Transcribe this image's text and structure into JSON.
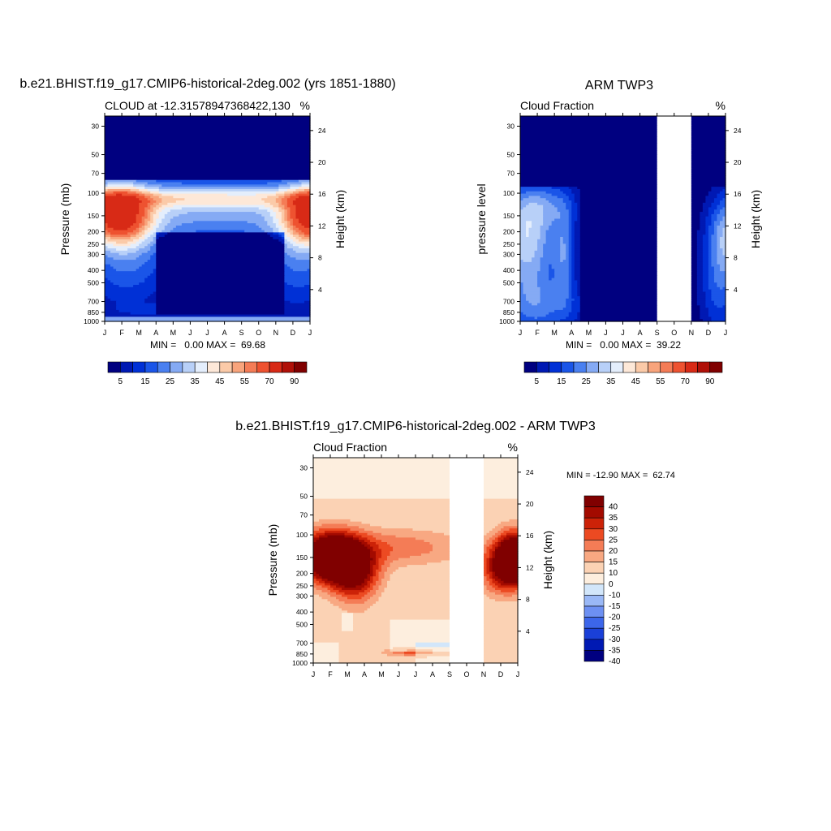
{
  "colors": {
    "seq": [
      "#000080",
      "#0019b3",
      "#0030d6",
      "#1a55e8",
      "#4a80f0",
      "#85aaf4",
      "#b8d0f8",
      "#e4eefc",
      "#fde8d8",
      "#fbcaa8",
      "#f8a47c",
      "#f47c56",
      "#ee5230",
      "#d82a16",
      "#b01008",
      "#800000"
    ],
    "div": [
      "#000080",
      "#0019b3",
      "#1a40d8",
      "#3c66ea",
      "#6d90f2",
      "#9ab8f6",
      "#d2e6fa",
      "#fdeede",
      "#fbd2b4",
      "#f8a882",
      "#f47c56",
      "#ec4a22",
      "#cc2208",
      "#a30a00",
      "#800000"
    ],
    "missing": "#ffffff"
  },
  "panels": [
    {
      "title": "b.e21.BHIST.f19_g17.CMIP6-historical-2deg.002 (yrs 1851-1880)",
      "left_string": "CLOUD at -12.31578947368422,130",
      "right_string": "%",
      "left_axis_label": "Pressure (mb)",
      "right_axis_label": "Height (km)",
      "stats": "MIN =   0.00 MAX =  69.68"
    },
    {
      "title": "ARM TWP3",
      "left_string": "Cloud Fraction",
      "right_string": "%",
      "left_axis_label": "pressure level",
      "right_axis_label": "Height (km)",
      "stats": "MIN =   0.00 MAX =  39.22"
    },
    {
      "title": "b.e21.BHIST.f19_g17.CMIP6-historical-2deg.002 - ARM TWP3",
      "left_string": "Cloud Fraction",
      "right_string": "%",
      "left_axis_label": "Pressure (mb)",
      "right_axis_label": "Height (km)",
      "stats": "MIN = -12.90 MAX =  62.74"
    }
  ],
  "chart_data": [
    {
      "type": "heatmap",
      "title": "b.e21.BHIST.f19_g17.CMIP6-historical-2deg.002 (yrs 1851-1880)",
      "xlabel": "",
      "ylabel": "Pressure (mb)",
      "y2label": "Height (km)",
      "x_ticks": [
        "J",
        "F",
        "M",
        "A",
        "M",
        "J",
        "J",
        "A",
        "S",
        "O",
        "N",
        "D",
        "J"
      ],
      "y_ticks": [
        30,
        50,
        70,
        100,
        150,
        200,
        250,
        300,
        400,
        500,
        700,
        850,
        1000
      ],
      "y2_ticks": [
        4,
        8,
        12,
        16,
        20,
        24
      ],
      "ylim": [
        1000,
        25
      ],
      "y_scale": "log",
      "colorbar_labels": [
        "5",
        "15",
        "25",
        "35",
        "45",
        "55",
        "70",
        "90"
      ],
      "min": 0.0,
      "max": 69.68
    },
    {
      "type": "heatmap",
      "title": "ARM TWP3",
      "xlabel": "",
      "ylabel": "pressure level",
      "y2label": "Height (km)",
      "x_ticks": [
        "J",
        "F",
        "M",
        "A",
        "M",
        "J",
        "J",
        "A",
        "S",
        "O",
        "N",
        "D",
        "J"
      ],
      "y_ticks": [
        30,
        50,
        70,
        100,
        150,
        200,
        250,
        300,
        400,
        500,
        700,
        850,
        1000
      ],
      "y2_ticks": [
        4,
        8,
        12,
        16,
        20,
        24
      ],
      "ylim": [
        1000,
        25
      ],
      "y_scale": "log",
      "missing_months": [
        "O"
      ],
      "colorbar_labels": [
        "5",
        "15",
        "25",
        "35",
        "45",
        "55",
        "70",
        "90"
      ],
      "min": 0.0,
      "max": 39.22
    },
    {
      "type": "heatmap",
      "title": "b.e21.BHIST.f19_g17.CMIP6-historical-2deg.002 - ARM TWP3",
      "xlabel": "",
      "ylabel": "Pressure (mb)",
      "y2label": "Height (km)",
      "x_ticks": [
        "J",
        "F",
        "M",
        "A",
        "M",
        "J",
        "J",
        "A",
        "S",
        "O",
        "N",
        "D",
        "J"
      ],
      "y_ticks": [
        30,
        50,
        70,
        100,
        150,
        200,
        250,
        300,
        400,
        500,
        700,
        850,
        1000
      ],
      "y2_ticks": [
        4,
        8,
        12,
        16,
        20,
        24
      ],
      "ylim": [
        1000,
        25
      ],
      "y_scale": "log",
      "missing_months": [
        "O"
      ],
      "colorbar_labels": [
        "40",
        "35",
        "30",
        "25",
        "20",
        "15",
        "10",
        "0",
        "-10",
        "-15",
        "-20",
        "-25",
        "-30",
        "-35",
        "-40"
      ],
      "min": -12.9,
      "max": 62.74
    }
  ]
}
